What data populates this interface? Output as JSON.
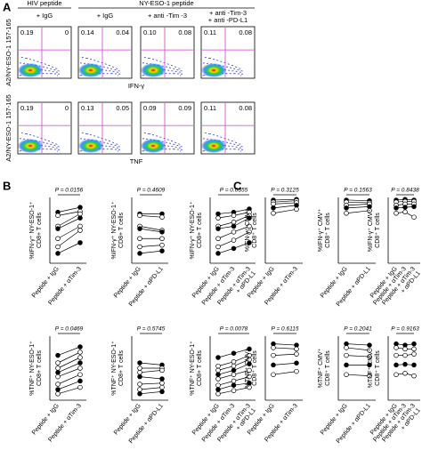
{
  "panel_labels": [
    "A",
    "B",
    "C"
  ],
  "panel_a": {
    "headers": [
      "HIV peptide",
      "NY-ESO-1 peptide"
    ],
    "columns": [
      [
        "+ IgG"
      ],
      [
        "+ IgG"
      ],
      [
        "+ anti -Tim -3"
      ],
      [
        "+ anti -Tim-3",
        "+ anti -PD-L1"
      ]
    ],
    "y_label": "A2/NY-ESO-1 157-165",
    "rows": [
      {
        "x_label": "IFN-γ",
        "quadrants": [
          [
            "0.19",
            "0"
          ],
          [
            "0.14",
            "0.04"
          ],
          [
            "0.10",
            "0.08"
          ],
          [
            "0.11",
            "0.08"
          ]
        ]
      },
      {
        "x_label": "TNF",
        "quadrants": [
          [
            "0.19",
            "0"
          ],
          [
            "0.13",
            "0.05"
          ],
          [
            "0.09",
            "0.09"
          ],
          [
            "0.11",
            "0.08"
          ]
        ]
      }
    ]
  },
  "chart_data": [
    {
      "type": "paired",
      "annotation": "P = 0.0156",
      "ylabel": [
        "%IFN-γ⁺ NY-ESO-1⁺",
        "CD8+ T cells"
      ],
      "ylim": [
        0,
        80
      ],
      "categories": [
        [
          "Peptide + IgG"
        ],
        [
          "Peptide + αTim-3"
        ]
      ],
      "values": [
        [
          62,
          58,
          45,
          42,
          30,
          20,
          12
        ],
        [
          68,
          63,
          60,
          55,
          45,
          40,
          25
        ]
      ]
    },
    {
      "type": "paired",
      "annotation": "P = 0.4609",
      "ylabel": [
        "%IFN-γ⁺ NY-ESO-1⁺",
        "CD8+ T cells"
      ],
      "ylim": [
        0,
        80
      ],
      "categories": [
        [
          "Peptide + IgG"
        ],
        [
          "Peptide + αPD-L1"
        ]
      ],
      "values": [
        [
          60,
          58,
          45,
          42,
          30,
          20,
          12
        ],
        [
          60,
          56,
          40,
          38,
          30,
          22,
          15
        ]
      ]
    },
    {
      "type": "paired",
      "annotation": "P = 0.0355",
      "ylabel": [
        "%IFN-γ⁺ NY-ESO-1⁺",
        "CD8+ T cells"
      ],
      "ylim": [
        0,
        80
      ],
      "categories": [
        [
          "Peptide + IgG"
        ],
        [
          "Peptide + αTim-3"
        ],
        [
          "Peptide + αTim-3",
          "+ αPD-L1"
        ]
      ],
      "values": [
        [
          60,
          55,
          45,
          42,
          30,
          20,
          12
        ],
        [
          62,
          58,
          50,
          45,
          38,
          28,
          18
        ],
        [
          66,
          62,
          58,
          55,
          45,
          38,
          25
        ]
      ]
    },
    {
      "type": "paired",
      "annotation": "P = 0.0469",
      "ylabel": [
        "%TNF⁺ NY-ESO-1⁺",
        "CD8+ T cells"
      ],
      "ylim": [
        0,
        60
      ],
      "categories": [
        [
          "Peptide + IgG"
        ],
        [
          "Peptide + αTim-3"
        ]
      ],
      "values": [
        [
          42,
          35,
          30,
          26,
          22,
          15,
          10,
          6
        ],
        [
          50,
          45,
          40,
          35,
          30,
          24,
          18,
          12
        ]
      ]
    },
    {
      "type": "paired",
      "annotation": "P = 0.5745",
      "ylabel": [
        "%TNF⁺ NY-ESO-1⁺",
        "CD8+ T cells"
      ],
      "ylim": [
        0,
        60
      ],
      "categories": [
        [
          "Peptide + IgG"
        ],
        [
          "Peptide + αPD-L1"
        ]
      ],
      "values": [
        [
          35,
          30,
          26,
          22,
          15,
          10,
          6
        ],
        [
          33,
          30,
          28,
          20,
          16,
          12,
          8
        ]
      ]
    },
    {
      "type": "paired",
      "annotation": "P = 0.0078",
      "ylabel": [
        "%TNF⁺ NY-ESO-1⁺",
        "CD8+ T cells"
      ],
      "ylim": [
        0,
        60
      ],
      "categories": [
        [
          "Peptide + IgG"
        ],
        [
          "Peptide + αTim-3"
        ],
        [
          "Peptide + αTim-3",
          "+ αPD-L1"
        ]
      ],
      "values": [
        [
          40,
          32,
          28,
          24,
          20,
          14,
          10,
          6
        ],
        [
          44,
          36,
          32,
          28,
          24,
          18,
          14,
          9
        ],
        [
          48,
          42,
          38,
          34,
          28,
          22,
          16,
          12
        ]
      ]
    },
    {
      "type": "paired",
      "annotation": "P = 0.3125",
      "ylabel": [
        "%IFN-γ⁺ CMV⁺",
        "CD8⁺ T cells"
      ],
      "ylim": [
        0,
        100
      ],
      "categories": [
        [
          "Peptide + IgG"
        ],
        [
          "Peptide + αTim-3"
        ]
      ],
      "values": [
        [
          96,
          93,
          90,
          84,
          76
        ],
        [
          97,
          95,
          92,
          88,
          82
        ]
      ]
    },
    {
      "type": "paired",
      "annotation": "P = 0.1563",
      "ylabel": [
        "%IFN-γ⁺ CMV⁺",
        "CD8⁺ T cells"
      ],
      "ylim": [
        0,
        100
      ],
      "categories": [
        [
          "Peptide + IgG"
        ],
        [
          "Peptide + αPD-L1"
        ]
      ],
      "values": [
        [
          96,
          93,
          88,
          84,
          76
        ],
        [
          95,
          92,
          90,
          86,
          80
        ]
      ]
    },
    {
      "type": "paired",
      "annotation": "P = 0.8438",
      "ylabel": [
        "%IFN-γ⁺ CMV⁺",
        "CD8⁺ T cells"
      ],
      "ylim": [
        0,
        100
      ],
      "categories": [
        [
          "Peptide + IgG"
        ],
        [
          "Peptide + αTim-3"
        ],
        [
          "Peptide + αTim-3",
          "+ αPD-L1"
        ]
      ],
      "values": [
        [
          96,
          93,
          88,
          84,
          76
        ],
        [
          97,
          94,
          90,
          85,
          78
        ],
        [
          96,
          94,
          90,
          86,
          70
        ]
      ]
    },
    {
      "type": "paired",
      "annotation": "P = 0.6115",
      "ylabel": [
        "%TNF⁺ CMV⁺",
        "CD8⁺ T cells"
      ],
      "ylim": [
        0,
        100
      ],
      "categories": [
        [
          "Peptide + IgG"
        ],
        [
          "Peptide + αTim-3"
        ]
      ],
      "values": [
        [
          88,
          82,
          70,
          55,
          40
        ],
        [
          86,
          80,
          72,
          58,
          45
        ]
      ]
    },
    {
      "type": "paired",
      "annotation": "P = 0.2041",
      "ylabel": [
        "%TNF⁺ CMV⁺",
        "CD8⁺ T cells"
      ],
      "ylim": [
        0,
        100
      ],
      "categories": [
        [
          "Peptide + IgG"
        ],
        [
          "Peptide + αPD-L1"
        ]
      ],
      "values": [
        [
          88,
          82,
          70,
          55,
          40
        ],
        [
          86,
          78,
          68,
          55,
          38
        ]
      ]
    },
    {
      "type": "paired",
      "annotation": "P = 0.9163",
      "ylabel": [
        "%TNF⁺ CMV⁺",
        "CD8⁺ T cells"
      ],
      "ylim": [
        0,
        100
      ],
      "categories": [
        [
          "Peptide + IgG"
        ],
        [
          "Peptide + αTim-3"
        ],
        [
          "Peptide + αTim-3",
          "+ αPD-L1"
        ]
      ],
      "values": [
        [
          88,
          82,
          70,
          55,
          40
        ],
        [
          86,
          80,
          70,
          56,
          42
        ],
        [
          88,
          80,
          72,
          55,
          38
        ]
      ]
    }
  ]
}
